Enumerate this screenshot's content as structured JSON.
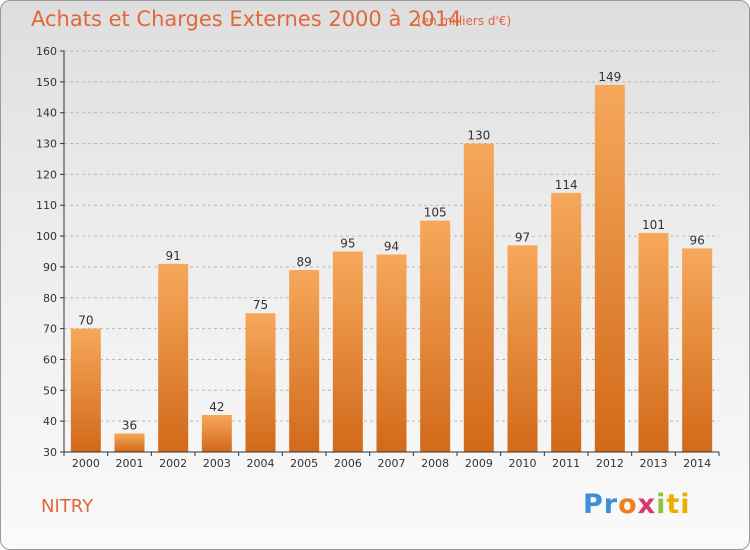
{
  "header": {
    "title": "Achats et Charges Externes 2000 à 2014",
    "unit": "(en milliers d'€)"
  },
  "footer": {
    "place": "NITRY",
    "logo": {
      "p1": "Pr",
      "p2": "o",
      "p3": "x",
      "p4": "i",
      "p5": "ti"
    }
  },
  "colors": {
    "bar_top": "#f6a85a",
    "bar_bottom": "#d2691a",
    "accent": "#e0683a"
  },
  "chart_data": {
    "type": "bar",
    "title": "Achats et Charges Externes 2000 à 2014",
    "categories": [
      "2000",
      "2001",
      "2002",
      "2003",
      "2004",
      "2005",
      "2006",
      "2007",
      "2008",
      "2009",
      "2010",
      "2011",
      "2012",
      "2013",
      "2014"
    ],
    "values": [
      70,
      36,
      91,
      42,
      75,
      89,
      95,
      94,
      105,
      130,
      97,
      114,
      149,
      101,
      96
    ],
    "ylim": [
      30,
      160
    ],
    "yticks": [
      30,
      40,
      50,
      60,
      70,
      80,
      90,
      100,
      110,
      120,
      130,
      140,
      150,
      160
    ],
    "grid": "horizontal-dashed",
    "data_labels": true
  }
}
